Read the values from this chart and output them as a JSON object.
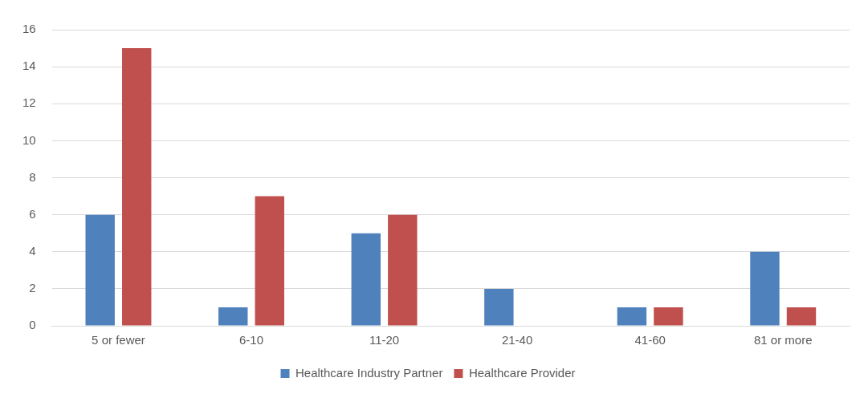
{
  "chart_data": {
    "type": "bar",
    "categories": [
      "5 or fewer",
      "6-10",
      "11-20",
      "21-40",
      "41-60",
      "81 or more"
    ],
    "series": [
      {
        "name": "Healthcare Industry Partner",
        "color": "#4f81bd",
        "values": [
          6,
          1,
          5,
          2,
          1,
          4
        ]
      },
      {
        "name": "Healthcare Provider",
        "color": "#c0504d",
        "values": [
          15,
          7,
          6,
          0,
          1,
          1
        ]
      }
    ],
    "ylim": [
      0,
      16
    ],
    "yticks": [
      0,
      2,
      4,
      6,
      8,
      10,
      12,
      14,
      16
    ],
    "grid": "y",
    "legend": "bottom"
  }
}
